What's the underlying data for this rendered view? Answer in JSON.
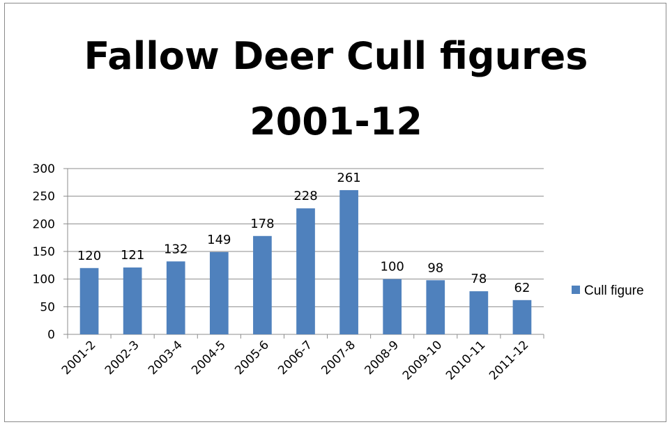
{
  "chart_data": {
    "type": "bar",
    "title_line1": "Fallow Deer Cull figures",
    "title_line2": "2001-12",
    "categories": [
      "2001-2",
      "2002-3",
      "2003-4",
      "2004-5",
      "2005-6",
      "2006-7",
      "2007-8",
      "2008-9",
      "2009-10",
      "2010-11",
      "2011-12"
    ],
    "series": [
      {
        "name": "Cull figure",
        "values": [
          120,
          121,
          132,
          149,
          178,
          228,
          261,
          100,
          98,
          78,
          62
        ],
        "color": "#4F81BD"
      }
    ],
    "ylim": [
      0,
      300
    ],
    "yticks": [
      0,
      50,
      100,
      150,
      200,
      250,
      300
    ],
    "grid": true,
    "legend_position": "right",
    "xlabel": "",
    "ylabel": ""
  }
}
